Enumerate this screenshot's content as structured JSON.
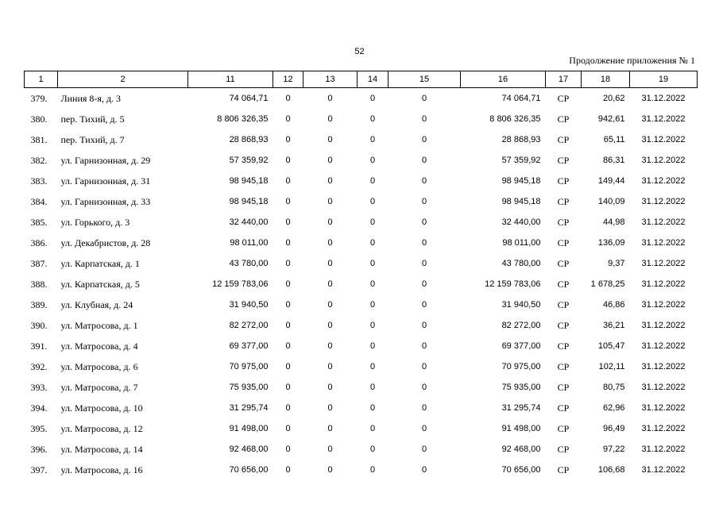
{
  "page_number": "52",
  "continuation": "Продолжение приложения № 1",
  "columns": [
    "1",
    "2",
    "11",
    "12",
    "13",
    "14",
    "15",
    "16",
    "17",
    "18",
    "19"
  ],
  "rows": [
    {
      "n": "379.",
      "address": "Линия 8-я, д. 3",
      "c11": "74 064,71",
      "c12": "0",
      "c13": "0",
      "c14": "0",
      "c15": "0",
      "c16": "74 064,71",
      "c17": "СР",
      "c18": "20,62",
      "c19": "31.12.2022"
    },
    {
      "n": "380.",
      "address": "пер. Тихий, д. 5",
      "c11": "8 806 326,35",
      "c12": "0",
      "c13": "0",
      "c14": "0",
      "c15": "0",
      "c16": "8 806 326,35",
      "c17": "СР",
      "c18": "942,61",
      "c19": "31.12.2022"
    },
    {
      "n": "381.",
      "address": "пер. Тихий, д. 7",
      "c11": "28 868,93",
      "c12": "0",
      "c13": "0",
      "c14": "0",
      "c15": "0",
      "c16": "28 868,93",
      "c17": "СР",
      "c18": "65,11",
      "c19": "31.12.2022"
    },
    {
      "n": "382.",
      "address": "ул. Гарнизонная, д. 29",
      "c11": "57 359,92",
      "c12": "0",
      "c13": "0",
      "c14": "0",
      "c15": "0",
      "c16": "57 359,92",
      "c17": "СР",
      "c18": "86,31",
      "c19": "31.12.2022"
    },
    {
      "n": "383.",
      "address": "ул. Гарнизонная, д. 31",
      "c11": "98 945,18",
      "c12": "0",
      "c13": "0",
      "c14": "0",
      "c15": "0",
      "c16": "98 945,18",
      "c17": "СР",
      "c18": "149,44",
      "c19": "31.12.2022"
    },
    {
      "n": "384.",
      "address": "ул. Гарнизонная, д. 33",
      "c11": "98 945,18",
      "c12": "0",
      "c13": "0",
      "c14": "0",
      "c15": "0",
      "c16": "98 945,18",
      "c17": "СР",
      "c18": "140,09",
      "c19": "31.12.2022"
    },
    {
      "n": "385.",
      "address": "ул. Горького, д. 3",
      "c11": "32 440,00",
      "c12": "0",
      "c13": "0",
      "c14": "0",
      "c15": "0",
      "c16": "32 440,00",
      "c17": "СР",
      "c18": "44,98",
      "c19": "31.12.2022"
    },
    {
      "n": "386.",
      "address": "ул. Декабристов, д. 28",
      "c11": "98 011,00",
      "c12": "0",
      "c13": "0",
      "c14": "0",
      "c15": "0",
      "c16": "98 011,00",
      "c17": "СР",
      "c18": "136,09",
      "c19": "31.12.2022"
    },
    {
      "n": "387.",
      "address": "ул. Карпатская, д. 1",
      "c11": "43 780,00",
      "c12": "0",
      "c13": "0",
      "c14": "0",
      "c15": "0",
      "c16": "43 780,00",
      "c17": "СР",
      "c18": "9,37",
      "c19": "31.12.2022"
    },
    {
      "n": "388.",
      "address": "ул. Карпатская, д. 5",
      "c11": "12 159 783,06",
      "c12": "0",
      "c13": "0",
      "c14": "0",
      "c15": "0",
      "c16": "12 159 783,06",
      "c17": "СР",
      "c18": "1 678,25",
      "c19": "31.12.2022"
    },
    {
      "n": "389.",
      "address": "ул. Клубная, д. 24",
      "c11": "31 940,50",
      "c12": "0",
      "c13": "0",
      "c14": "0",
      "c15": "0",
      "c16": "31 940,50",
      "c17": "СР",
      "c18": "46,86",
      "c19": "31.12.2022"
    },
    {
      "n": "390.",
      "address": "ул. Матросова, д. 1",
      "c11": "82 272,00",
      "c12": "0",
      "c13": "0",
      "c14": "0",
      "c15": "0",
      "c16": "82 272,00",
      "c17": "СР",
      "c18": "36,21",
      "c19": "31.12.2022"
    },
    {
      "n": "391.",
      "address": "ул. Матросова, д. 4",
      "c11": "69 377,00",
      "c12": "0",
      "c13": "0",
      "c14": "0",
      "c15": "0",
      "c16": "69 377,00",
      "c17": "СР",
      "c18": "105,47",
      "c19": "31.12.2022"
    },
    {
      "n": "392.",
      "address": "ул. Матросова, д. 6",
      "c11": "70 975,00",
      "c12": "0",
      "c13": "0",
      "c14": "0",
      "c15": "0",
      "c16": "70 975,00",
      "c17": "СР",
      "c18": "102,11",
      "c19": "31.12.2022"
    },
    {
      "n": "393.",
      "address": "ул. Матросова, д. 7",
      "c11": "75 935,00",
      "c12": "0",
      "c13": "0",
      "c14": "0",
      "c15": "0",
      "c16": "75 935,00",
      "c17": "СР",
      "c18": "80,75",
      "c19": "31.12.2022"
    },
    {
      "n": "394.",
      "address": "ул. Матросова, д. 10",
      "c11": "31 295,74",
      "c12": "0",
      "c13": "0",
      "c14": "0",
      "c15": "0",
      "c16": "31 295,74",
      "c17": "СР",
      "c18": "62,96",
      "c19": "31.12.2022"
    },
    {
      "n": "395.",
      "address": "ул. Матросова, д. 12",
      "c11": "91 498,00",
      "c12": "0",
      "c13": "0",
      "c14": "0",
      "c15": "0",
      "c16": "91 498,00",
      "c17": "СР",
      "c18": "96,49",
      "c19": "31.12.2022"
    },
    {
      "n": "396.",
      "address": "ул. Матросова, д. 14",
      "c11": "92 468,00",
      "c12": "0",
      "c13": "0",
      "c14": "0",
      "c15": "0",
      "c16": "92 468,00",
      "c17": "СР",
      "c18": "97,22",
      "c19": "31.12.2022"
    },
    {
      "n": "397.",
      "address": "ул. Матросова, д. 16",
      "c11": "70 656,00",
      "c12": "0",
      "c13": "0",
      "c14": "0",
      "c15": "0",
      "c16": "70 656,00",
      "c17": "СР",
      "c18": "106,68",
      "c19": "31.12.2022"
    }
  ]
}
